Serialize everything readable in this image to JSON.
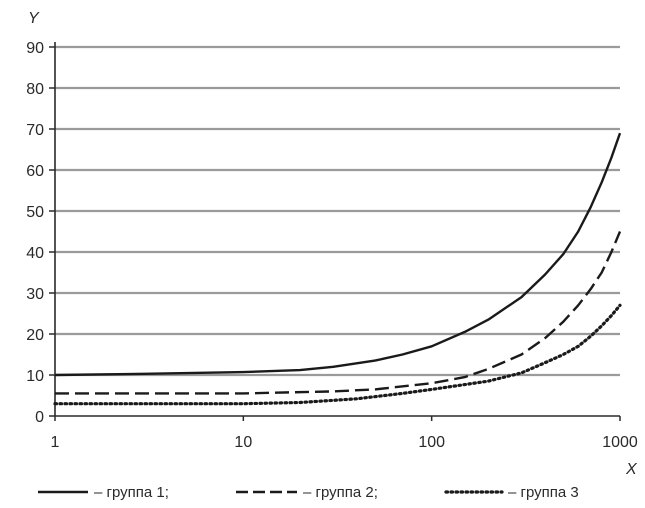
{
  "chart_data": {
    "type": "line",
    "xlabel": "X",
    "ylabel": "Y",
    "x_scale": "log",
    "xlim": [
      1,
      1000
    ],
    "ylim": [
      0,
      90
    ],
    "x_ticks": [
      1,
      10,
      100,
      1000
    ],
    "x_tick_labels": [
      "1",
      "10",
      "100",
      "1000"
    ],
    "y_ticks": [
      0,
      10,
      20,
      30,
      40,
      50,
      60,
      70,
      80,
      90
    ],
    "y_tick_labels": [
      "0",
      "10",
      "20",
      "30",
      "40",
      "50",
      "60",
      "70",
      "80",
      "90"
    ],
    "grid": "horizontal",
    "legend_position": "bottom",
    "series": [
      {
        "name": "– группа 1;",
        "line_style": "solid",
        "color": "#1a1a1a",
        "points": [
          [
            1,
            10
          ],
          [
            3,
            10.3
          ],
          [
            10,
            10.7
          ],
          [
            20,
            11.2
          ],
          [
            30,
            12
          ],
          [
            50,
            13.5
          ],
          [
            70,
            15
          ],
          [
            100,
            17
          ],
          [
            150,
            20.5
          ],
          [
            200,
            23.5
          ],
          [
            300,
            29
          ],
          [
            400,
            34.5
          ],
          [
            500,
            39.5
          ],
          [
            600,
            45
          ],
          [
            700,
            51
          ],
          [
            800,
            57
          ],
          [
            900,
            63
          ],
          [
            1000,
            69
          ]
        ]
      },
      {
        "name": "– группа 2;",
        "line_style": "dashed",
        "color": "#1a1a1a",
        "points": [
          [
            1,
            5.5
          ],
          [
            10,
            5.5
          ],
          [
            30,
            6
          ],
          [
            50,
            6.5
          ],
          [
            100,
            8
          ],
          [
            150,
            9.5
          ],
          [
            200,
            11.5
          ],
          [
            300,
            15
          ],
          [
            400,
            19
          ],
          [
            500,
            23
          ],
          [
            600,
            27
          ],
          [
            700,
            31
          ],
          [
            800,
            35
          ],
          [
            900,
            40
          ],
          [
            1000,
            45
          ]
        ]
      },
      {
        "name": "– группа 3",
        "line_style": "dotted",
        "color": "#1a1a1a",
        "points": [
          [
            1,
            3
          ],
          [
            10,
            3
          ],
          [
            20,
            3.3
          ],
          [
            40,
            4.2
          ],
          [
            70,
            5.5
          ],
          [
            100,
            6.5
          ],
          [
            200,
            8.5
          ],
          [
            300,
            10.5
          ],
          [
            400,
            13
          ],
          [
            500,
            15
          ],
          [
            600,
            17
          ],
          [
            700,
            19.5
          ],
          [
            800,
            22
          ],
          [
            900,
            24.5
          ],
          [
            1000,
            27
          ]
        ]
      }
    ]
  }
}
